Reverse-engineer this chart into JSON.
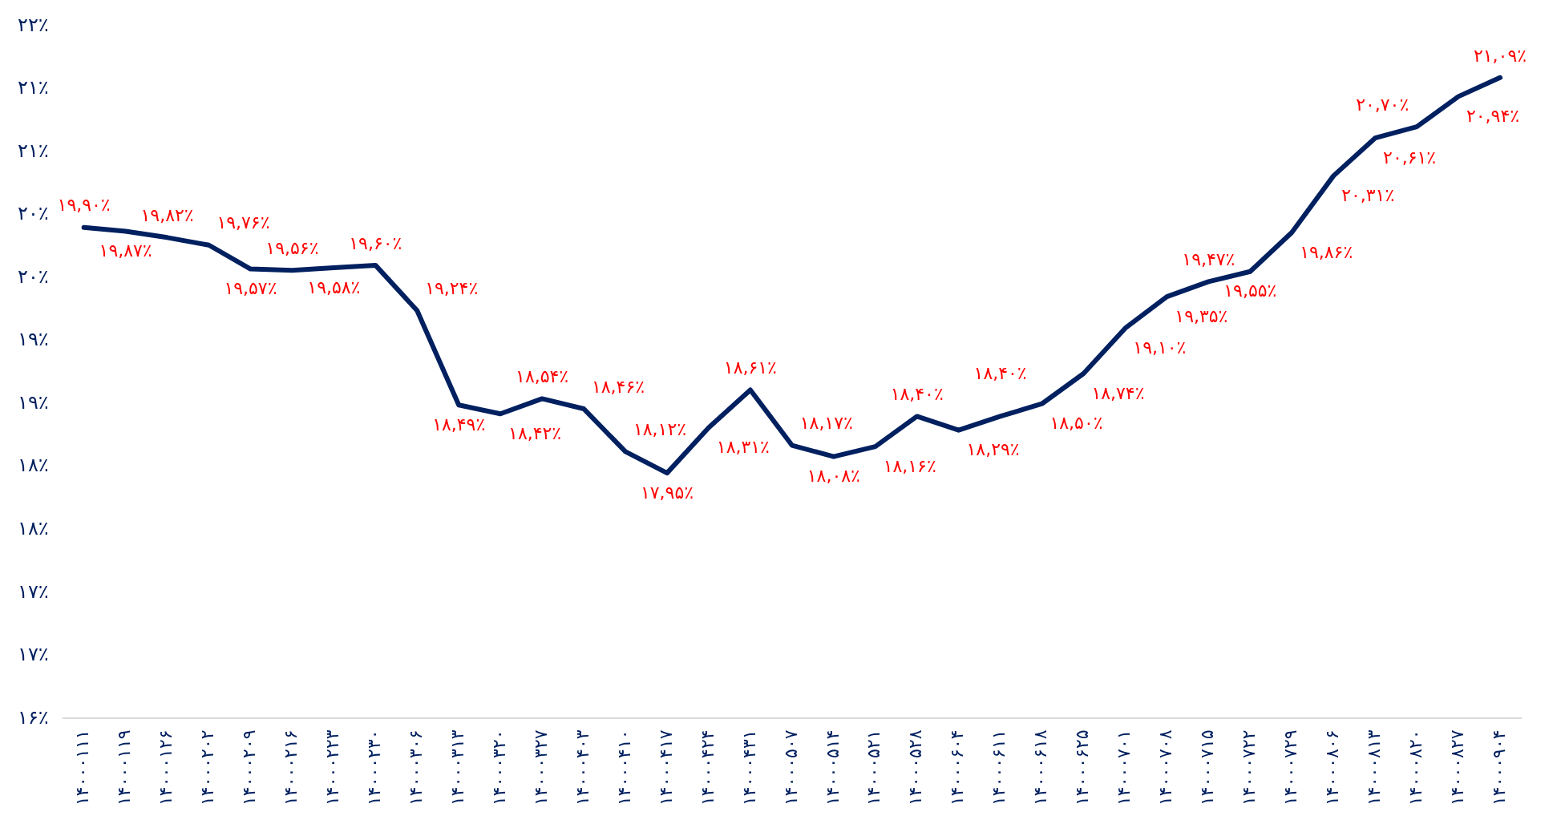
{
  "chart_data": {
    "type": "line",
    "categories": [
      "۱۴۰۰۰۱۱۱",
      "۱۴۰۰۰۱۱۹",
      "۱۴۰۰۰۱۲۶",
      "۱۴۰۰۰۲۰۲",
      "۱۴۰۰۰۲۰۹",
      "۱۴۰۰۰۲۱۶",
      "۱۴۰۰۰۲۲۳",
      "۱۴۰۰۰۲۳۰",
      "۱۴۰۰۰۳۰۶",
      "۱۴۰۰۰۳۱۳",
      "۱۴۰۰۰۳۲۰",
      "۱۴۰۰۰۳۲۷",
      "۱۴۰۰۰۴۰۳",
      "۱۴۰۰۰۴۱۰",
      "۱۴۰۰۰۴۱۷",
      "۱۴۰۰۰۴۲۴",
      "۱۴۰۰۰۴۳۱",
      "۱۴۰۰۰۵۰۷",
      "۱۴۰۰۰۵۱۴",
      "۱۴۰۰۰۵۲۱",
      "۱۴۰۰۰۵۲۸",
      "۱۴۰۰۰۶۰۴",
      "۱۴۰۰۰۶۱۱",
      "۱۴۰۰۰۶۱۸",
      "۱۴۰۰۰۶۲۵",
      "۱۴۰۰۰۷۰۱",
      "۱۴۰۰۰۷۰۸",
      "۱۴۰۰۰۷۱۵",
      "۱۴۰۰۰۷۲۲",
      "۱۴۰۰۰۷۲۹",
      "۱۴۰۰۰۸۰۶",
      "۱۴۰۰۰۸۱۳",
      "۱۴۰۰۰۸۲۰",
      "۱۴۰۰۰۸۲۷",
      "۱۴۰۰۰۹۰۴"
    ],
    "series": [
      {
        "color": "#002060",
        "values": [
          19.9,
          19.87,
          19.82,
          19.76,
          19.57,
          19.56,
          19.58,
          19.6,
          19.24,
          18.49,
          18.42,
          18.54,
          18.46,
          18.12,
          17.95,
          18.31,
          18.61,
          18.17,
          18.08,
          18.16,
          18.4,
          18.29,
          18.4,
          18.5,
          18.74,
          19.1,
          19.35,
          19.47,
          19.55,
          19.86,
          20.31,
          20.61,
          20.7,
          20.94,
          21.09
        ],
        "value_labels": [
          "۱۹,۹۰٪",
          "۱۹,۸۷٪",
          "۱۹,۸۲٪",
          "۱۹,۷۶٪",
          "۱۹,۵۷٪",
          "۱۹,۵۶٪",
          "۱۹,۵۸٪",
          "۱۹,۶۰٪",
          "۱۹,۲۴٪",
          "۱۸,۴۹٪",
          "۱۸,۴۲٪",
          "۱۸,۵۴٪",
          "۱۸,۴۶٪",
          "۱۸,۱۲٪",
          "۱۷,۹۵٪",
          "۱۸,۳۱٪",
          "۱۸,۶۱٪",
          "۱۸,۱۷٪",
          "۱۸,۰۸٪",
          "۱۸,۱۶٪",
          "۱۸,۴۰٪",
          "۱۸,۲۹٪",
          "۱۸,۴۰٪",
          "۱۸,۵۰٪",
          "۱۸,۷۴٪",
          "۱۹,۱۰٪",
          "۱۹,۳۵٪",
          "۱۹,۴۷٪",
          "۱۹,۵۵٪",
          "۱۹,۸۶٪",
          "۲۰,۳۱٪",
          "۲۰,۶۱٪",
          "۲۰,۷۰٪",
          "۲۰,۹۴٪",
          "۲۱,۰۹٪"
        ]
      }
    ],
    "ylim": [
      16,
      21.5
    ],
    "yticks": [
      {
        "value": 16,
        "label": "۱۶٪"
      },
      {
        "value": 16.5,
        "label": "۱۷٪"
      },
      {
        "value": 17,
        "label": "۱۷٪"
      },
      {
        "value": 17.5,
        "label": "۱۸٪"
      },
      {
        "value": 18,
        "label": "۱۸٪"
      },
      {
        "value": 18.5,
        "label": "۱۹٪"
      },
      {
        "value": 19,
        "label": "۱۹٪"
      },
      {
        "value": 19.5,
        "label": "۲۰٪"
      },
      {
        "value": 20,
        "label": "۲۰٪"
      },
      {
        "value": 20.5,
        "label": "۲۱٪"
      },
      {
        "value": 21,
        "label": "۲۱٪"
      },
      {
        "value": 21.5,
        "label": "۲۲٪"
      }
    ],
    "grid": false,
    "legend": false,
    "marker": "none",
    "line_style": "solid"
  }
}
